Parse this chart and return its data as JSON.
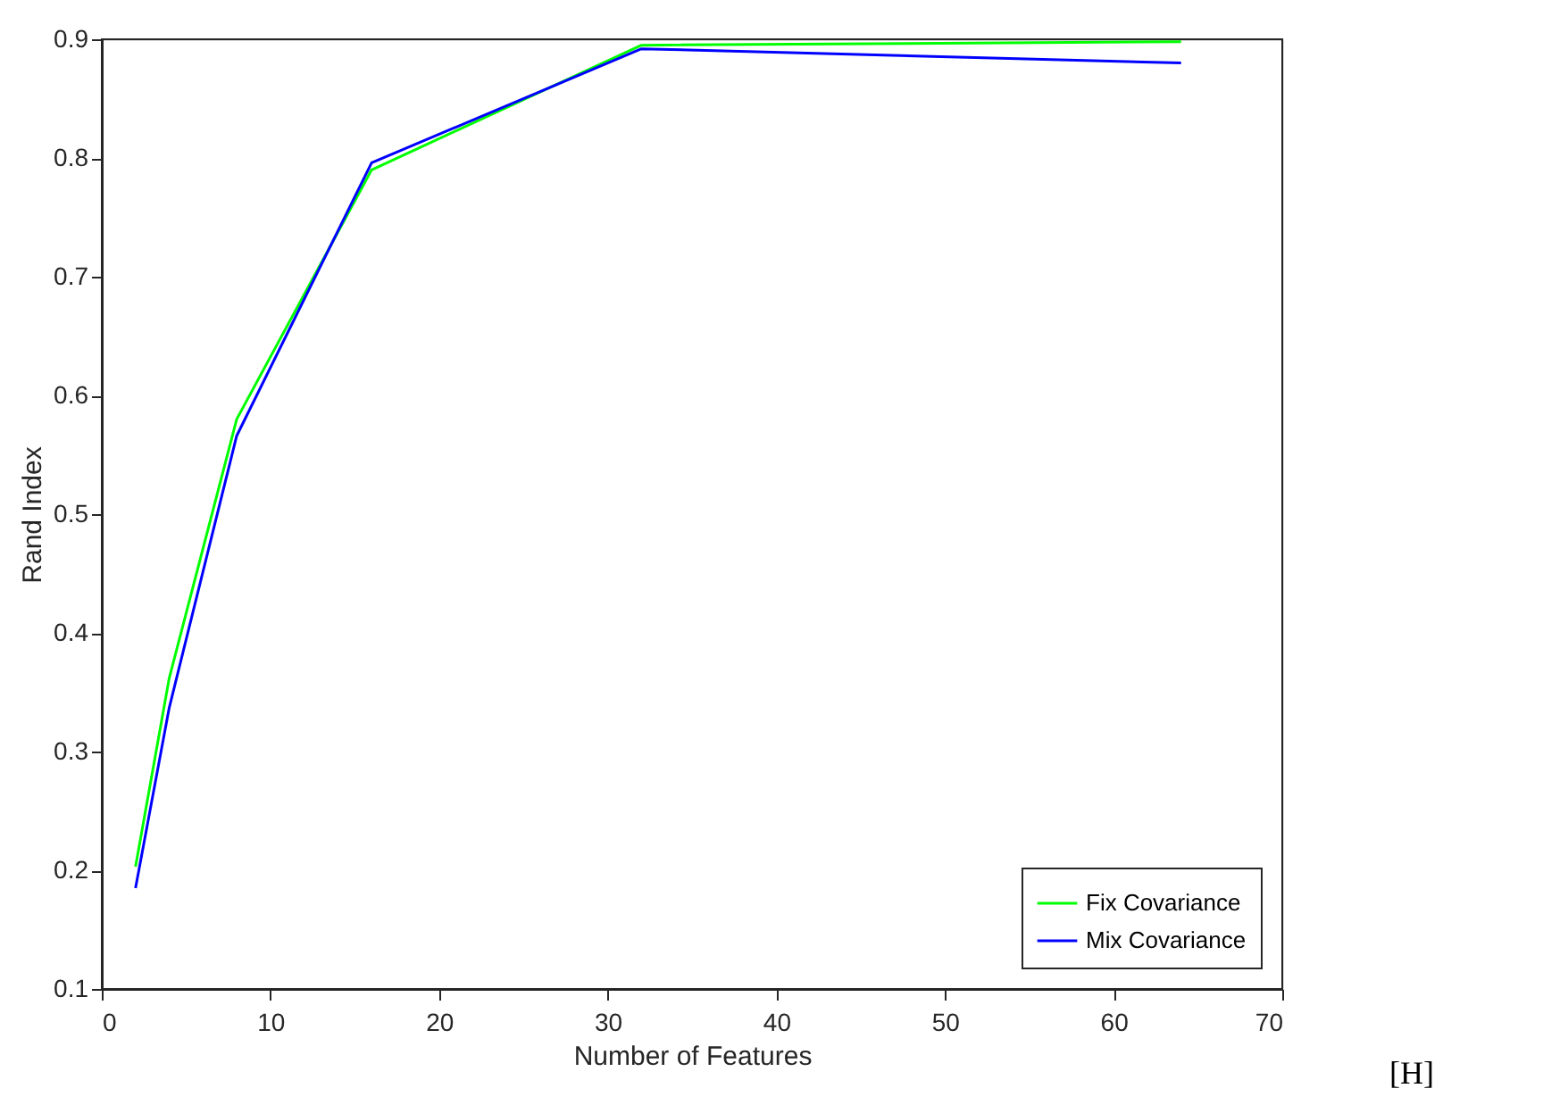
{
  "chart_data": {
    "type": "line",
    "xlabel": "Number of Features",
    "ylabel": "Rand Index",
    "x": [
      2,
      4,
      8,
      16,
      32,
      64
    ],
    "series": [
      {
        "name": "Fix Covariance",
        "color": "#00ff00",
        "values": [
          0.203,
          0.362,
          0.58,
          0.79,
          0.895,
          0.898
        ]
      },
      {
        "name": "Mix Covariance",
        "color": "#0000ff",
        "values": [
          0.185,
          0.337,
          0.566,
          0.796,
          0.892,
          0.88
        ]
      }
    ],
    "xlim": [
      0,
      70
    ],
    "xticks": [
      0,
      10,
      20,
      30,
      40,
      50,
      60,
      70
    ],
    "ylim": [
      0.1,
      0.9
    ],
    "yticks": [
      0.1,
      0.2,
      0.3,
      0.4,
      0.5,
      0.6,
      0.7,
      0.8,
      0.9
    ],
    "grid": false,
    "legend": "bottom right",
    "marker": "none",
    "line_style": "solid",
    "annotations": [
      "[H]"
    ]
  }
}
